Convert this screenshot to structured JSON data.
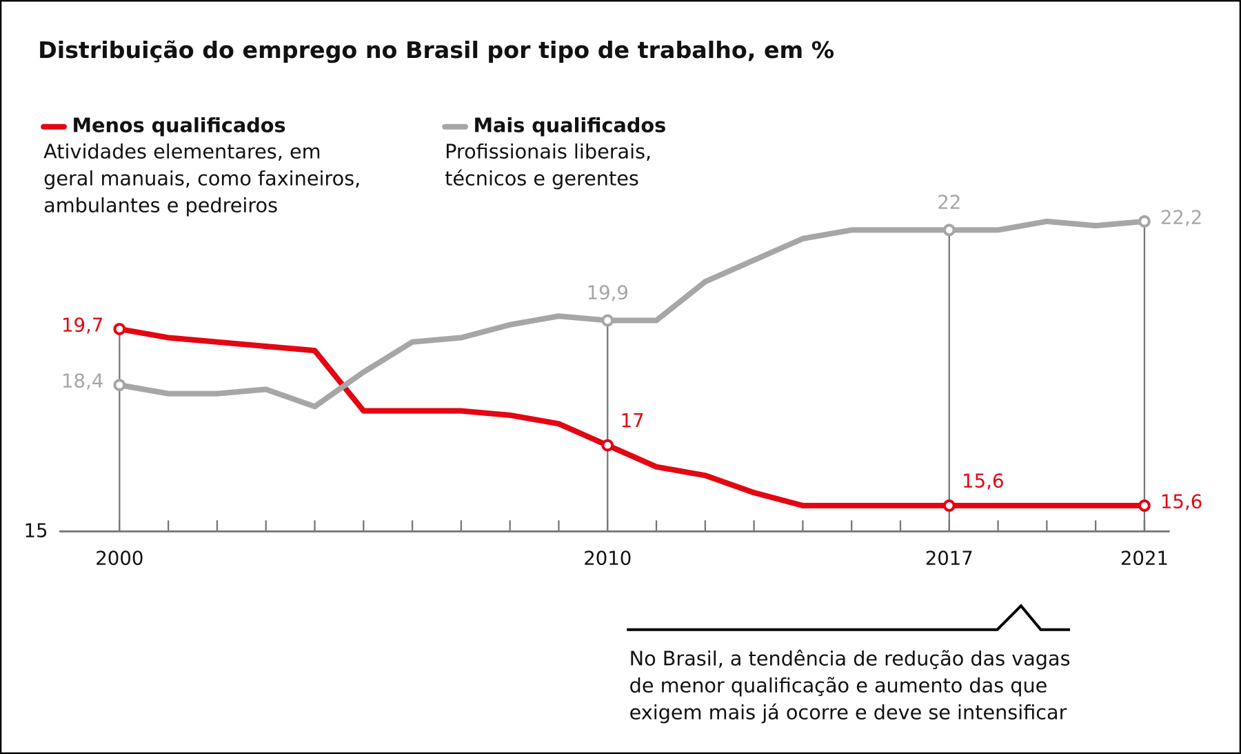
{
  "chart_data": {
    "type": "line",
    "title": "Distribuição do emprego no Brasil por tipo de trabalho, em %",
    "x": [
      2000,
      2001,
      2002,
      2003,
      2004,
      2005,
      2006,
      2007,
      2008,
      2009,
      2010,
      2011,
      2012,
      2013,
      2014,
      2015,
      2016,
      2017,
      2018,
      2019,
      2020,
      2021
    ],
    "series": [
      {
        "name": "Menos qualificados",
        "color": "#e30613",
        "description": [
          "Atividades elementares, em",
          "geral manuais, como faxineiros,",
          "ambulantes e pedreiros"
        ],
        "values": [
          19.7,
          19.5,
          19.4,
          19.3,
          19.2,
          17.8,
          17.8,
          17.8,
          17.7,
          17.5,
          17,
          16.5,
          16.3,
          15.9,
          15.6,
          15.6,
          15.6,
          15.6,
          15.6,
          15.6,
          15.6,
          15.6
        ],
        "value_labels": [
          "19,7",
          null,
          null,
          null,
          null,
          null,
          null,
          null,
          null,
          null,
          "17",
          null,
          null,
          null,
          null,
          null,
          null,
          "15,6",
          null,
          null,
          null,
          "15,6"
        ]
      },
      {
        "name": "Mais qualificados",
        "color": "#a6a6a6",
        "description": [
          "Profissionais liberais,",
          "técnicos e gerentes"
        ],
        "values": [
          18.4,
          18.2,
          18.2,
          18.3,
          17.9,
          18.7,
          19.4,
          19.5,
          19.8,
          20.0,
          19.9,
          19.9,
          20.8,
          21.3,
          21.8,
          22,
          22,
          22,
          22,
          22.2,
          22.1,
          22.2
        ],
        "value_labels": [
          "18,4",
          null,
          null,
          null,
          null,
          null,
          null,
          null,
          null,
          null,
          "19,9",
          null,
          null,
          null,
          null,
          null,
          null,
          "22",
          null,
          null,
          null,
          "22,2"
        ]
      }
    ],
    "xlim": [
      2000,
      2021
    ],
    "xticks": [
      2000,
      2010,
      2017,
      2021
    ],
    "ylim": [
      15,
      23
    ],
    "yticks": [
      15
    ],
    "annotation": [
      "No Brasil, a tendência de redução das vagas",
      "de menor qualificação e aumento das que",
      "exigem mais já ocorre e deve se intensificar"
    ]
  }
}
